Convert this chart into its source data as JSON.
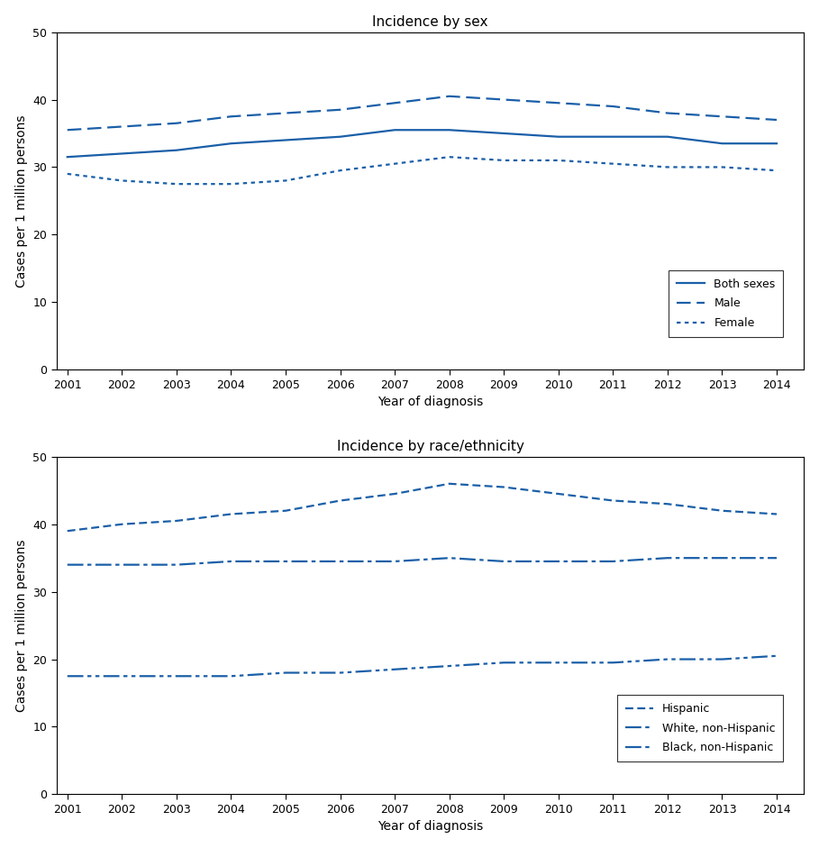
{
  "years": [
    2001,
    2002,
    2003,
    2004,
    2005,
    2006,
    2007,
    2008,
    2009,
    2010,
    2011,
    2012,
    2013,
    2014
  ],
  "sex": {
    "title": "Incidence by sex",
    "both_sexes": [
      31.5,
      32.0,
      32.5,
      33.5,
      34.0,
      34.5,
      35.5,
      35.5,
      35.0,
      34.5,
      34.5,
      34.5,
      33.5,
      33.5
    ],
    "male": [
      35.5,
      36.0,
      36.5,
      37.5,
      38.0,
      38.5,
      39.5,
      40.5,
      40.0,
      39.5,
      39.0,
      38.0,
      37.5,
      37.0
    ],
    "female": [
      29.0,
      28.0,
      27.5,
      27.5,
      28.0,
      29.5,
      30.5,
      31.5,
      31.0,
      31.0,
      30.5,
      30.0,
      30.0,
      29.5
    ]
  },
  "race": {
    "title": "Incidence by race/ethnicity",
    "hispanic": [
      39.0,
      40.0,
      40.5,
      41.5,
      42.0,
      43.5,
      44.5,
      46.0,
      45.5,
      44.5,
      43.5,
      43.0,
      42.0,
      41.5
    ],
    "white_non_hisp": [
      34.0,
      34.0,
      34.0,
      34.5,
      34.5,
      34.5,
      34.5,
      35.0,
      34.5,
      34.5,
      34.5,
      35.0,
      35.0,
      35.0
    ],
    "black_non_hisp": [
      17.5,
      17.5,
      17.5,
      17.5,
      18.0,
      18.0,
      18.5,
      19.0,
      19.5,
      19.5,
      19.5,
      20.0,
      20.0,
      20.5
    ]
  },
  "color": "#1a5fa8",
  "xlabel": "Year of diagnosis",
  "ylabel": "Cases per 1 million persons",
  "ylim": [
    0,
    50
  ],
  "yticks": [
    0,
    10,
    20,
    30,
    40,
    50
  ]
}
